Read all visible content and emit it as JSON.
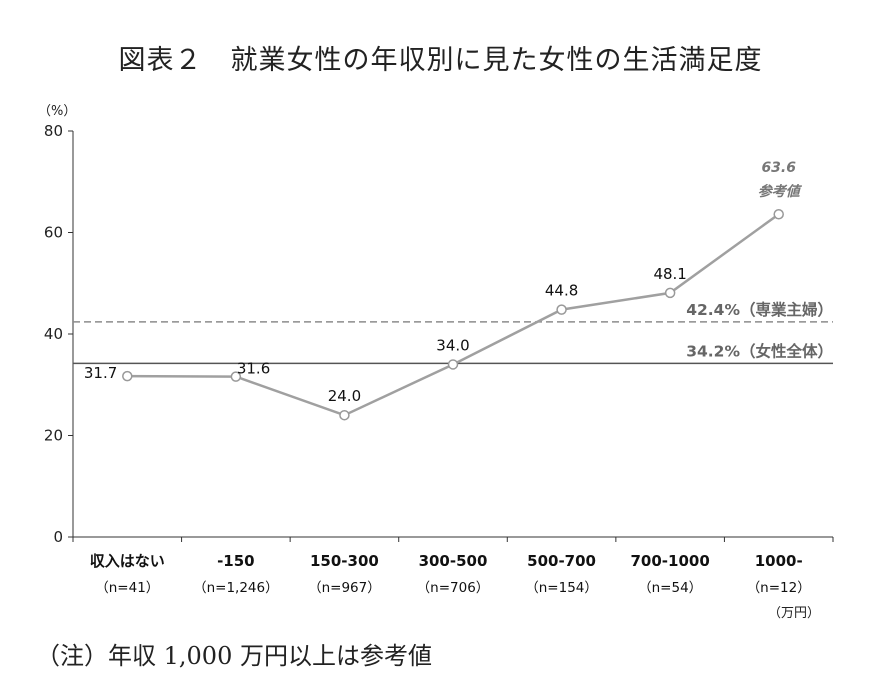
{
  "title": "図表２　就業女性の年収別に見た女性の生活満足度",
  "footnote": "（注）年収 1,000 万円以上は参考値",
  "chart_data": {
    "type": "line",
    "ylabel": "（%）",
    "ylim": [
      0,
      80
    ],
    "yticks": [
      0,
      20,
      40,
      60,
      80
    ],
    "categories": [
      "収入はない",
      "-150",
      "150-300",
      "300-500",
      "500-700",
      "700-1000",
      "1000-"
    ],
    "sample_sizes": [
      "（n=41）",
      "（n=1,246）",
      "（n=967）",
      "（n=706）",
      "（n=154）",
      "（n=54）",
      "（n=12）"
    ],
    "x_unit": "（万円）",
    "series": [
      {
        "values": [
          31.7,
          31.6,
          24.0,
          34.0,
          44.8,
          48.1,
          63.6
        ],
        "labels": [
          "31.7",
          "31.6",
          "24.0",
          "34.0",
          "44.8",
          "48.1",
          "63.6"
        ],
        "color": "#a0a0a0"
      }
    ],
    "reference_note": "参考値",
    "reference_lines": [
      {
        "value": 42.4,
        "label": "42.4%（専業主婦）",
        "style": "dashed",
        "color": "#8c8c8c"
      },
      {
        "value": 34.2,
        "label": "34.2%（女性全体）",
        "style": "solid",
        "color": "#555555"
      }
    ],
    "grid": false
  }
}
